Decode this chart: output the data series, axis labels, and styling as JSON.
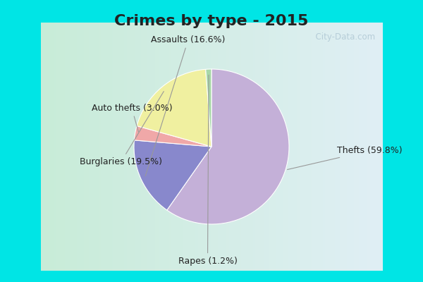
{
  "title": "Crimes by type - 2015",
  "title_fontsize": 16,
  "title_fontweight": "bold",
  "slices": [
    {
      "label": "Thefts (59.8%)",
      "value": 59.8,
      "color": "#c4b0d8"
    },
    {
      "label": "Assaults (16.6%)",
      "value": 16.6,
      "color": "#8888cc"
    },
    {
      "label": "Auto thefts (3.0%)",
      "value": 3.0,
      "color": "#f0a8a8"
    },
    {
      "label": "Burglaries (19.5%)",
      "value": 19.5,
      "color": "#f0f0a0"
    },
    {
      "label": "Rapes (1.2%)",
      "value": 1.2,
      "color": "#a8d8a8"
    }
  ],
  "fig_bg": "#00e5e5",
  "inner_bg_left": "#c8ecd8",
  "inner_bg_right": "#e0eff5",
  "startangle": 90,
  "label_fontsize": 9,
  "watermark": "  City-Data.com"
}
